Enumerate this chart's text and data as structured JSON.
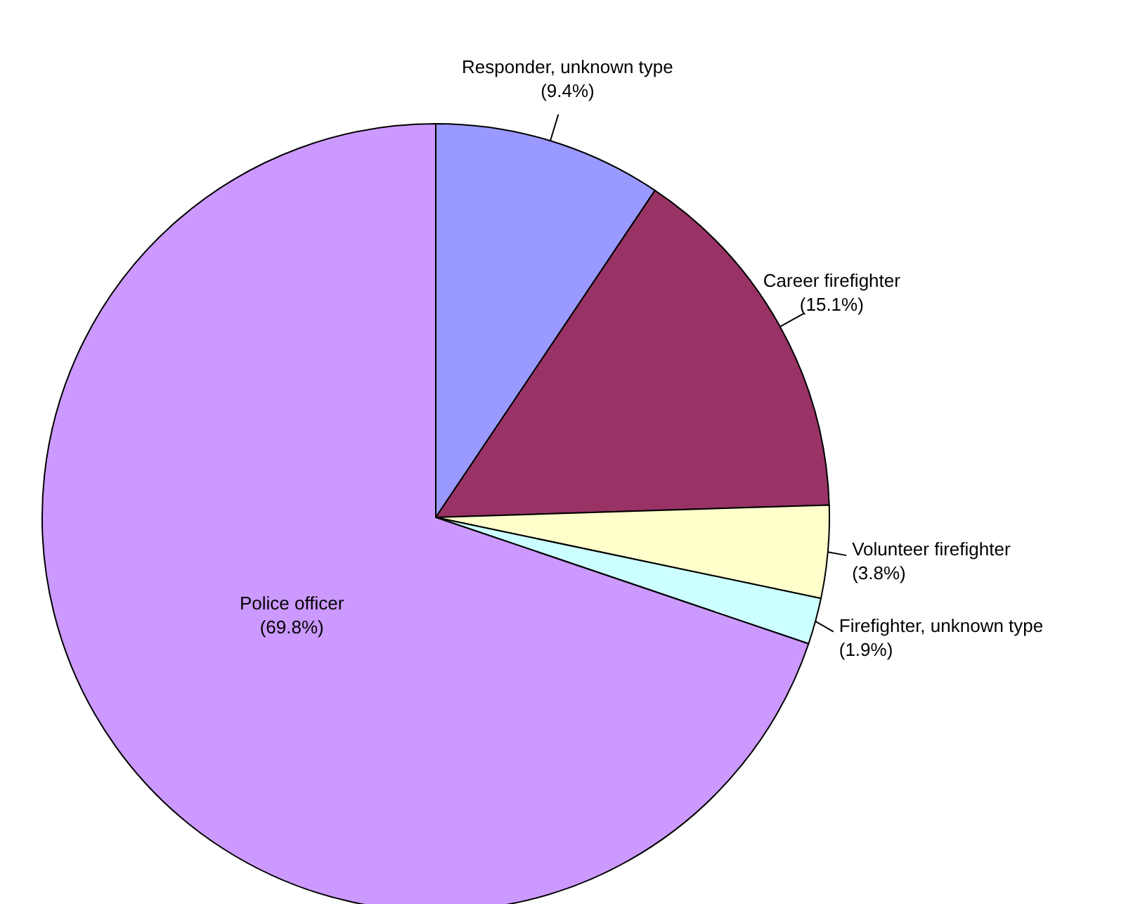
{
  "chart_data": {
    "type": "pie",
    "categories": [
      "Responder, unknown type",
      "Career firefighter",
      "Volunteer firefighter",
      "Firefighter, unknown type",
      "Police officer"
    ],
    "values": [
      9.4,
      15.1,
      3.8,
      1.9,
      69.8
    ],
    "colors": [
      "#9999ff",
      "#993366",
      "#ffffcc",
      "#ccffff",
      "#cc99ff"
    ],
    "value_labels": [
      "(9.4%)",
      "(15.1%)",
      "(3.8%)",
      "(1.9%)",
      "(69.8%)"
    ]
  }
}
